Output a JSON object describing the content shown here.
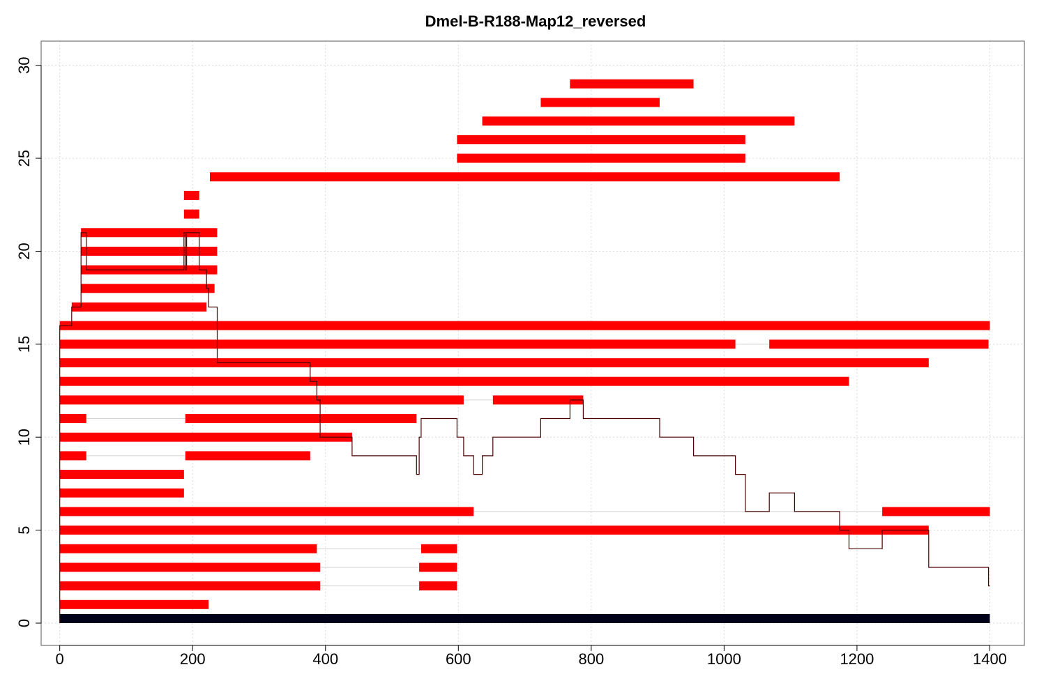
{
  "chart_data": {
    "type": "segment-coverage",
    "title": "Dmel-B-R188-Map12_reversed",
    "xlabel": "",
    "ylabel": "",
    "xlim": [
      -28,
      1452
    ],
    "ylim": [
      -1.2,
      31.3
    ],
    "x_ticks": [
      0,
      200,
      400,
      600,
      800,
      1000,
      1200,
      1400
    ],
    "y_ticks": [
      0,
      5,
      10,
      15,
      20,
      25,
      30
    ],
    "grid": true,
    "colors": {
      "segment": "#ff0000",
      "connector": "#d3d3d3",
      "reference": "#00001a",
      "coverage": "#4a0000",
      "grid": "#d9d9d9"
    },
    "reference_bar": {
      "start": 0,
      "end": 1400,
      "y": 0
    },
    "reads": [
      {
        "y": 1,
        "segments": [
          [
            0,
            224
          ]
        ]
      },
      {
        "y": 2,
        "segments": [
          [
            0,
            392
          ],
          [
            541,
            598
          ]
        ]
      },
      {
        "y": 3,
        "segments": [
          [
            0,
            392
          ],
          [
            541,
            598
          ]
        ]
      },
      {
        "y": 4,
        "segments": [
          [
            0,
            387
          ],
          [
            544,
            598
          ]
        ]
      },
      {
        "y": 5,
        "segments": [
          [
            0,
            1308
          ]
        ]
      },
      {
        "y": 6,
        "segments": [
          [
            0,
            623
          ],
          [
            1238,
            1400
          ]
        ]
      },
      {
        "y": 7,
        "segments": [
          [
            0,
            187
          ]
        ]
      },
      {
        "y": 8,
        "segments": [
          [
            0,
            187
          ]
        ]
      },
      {
        "y": 9,
        "segments": [
          [
            0,
            40
          ],
          [
            189,
            377
          ]
        ]
      },
      {
        "y": 10,
        "segments": [
          [
            0,
            440
          ]
        ]
      },
      {
        "y": 11,
        "segments": [
          [
            0,
            40
          ],
          [
            189,
            537
          ]
        ]
      },
      {
        "y": 12,
        "segments": [
          [
            0,
            608
          ],
          [
            652,
            788
          ]
        ]
      },
      {
        "y": 13,
        "segments": [
          [
            0,
            1188
          ]
        ]
      },
      {
        "y": 14,
        "segments": [
          [
            0,
            1308
          ]
        ]
      },
      {
        "y": 15,
        "segments": [
          [
            0,
            1017
          ],
          [
            1068,
            1398
          ]
        ]
      },
      {
        "y": 16,
        "segments": [
          [
            0,
            1400
          ]
        ]
      },
      {
        "y": 17,
        "segments": [
          [
            18,
            221
          ]
        ]
      },
      {
        "y": 18,
        "segments": [
          [
            32,
            233
          ]
        ]
      },
      {
        "y": 19,
        "segments": [
          [
            32,
            237
          ]
        ]
      },
      {
        "y": 20,
        "segments": [
          [
            32,
            237
          ]
        ]
      },
      {
        "y": 21,
        "segments": [
          [
            32,
            237
          ]
        ]
      },
      {
        "y": 22,
        "segments": [
          [
            187,
            210
          ]
        ]
      },
      {
        "y": 23,
        "segments": [
          [
            187,
            210
          ]
        ]
      },
      {
        "y": 24,
        "segments": [
          [
            226,
            1174
          ]
        ]
      },
      {
        "y": 25,
        "segments": [
          [
            598,
            1032
          ]
        ]
      },
      {
        "y": 26,
        "segments": [
          [
            598,
            1032
          ]
        ]
      },
      {
        "y": 27,
        "segments": [
          [
            636,
            1106
          ]
        ]
      },
      {
        "y": 28,
        "segments": [
          [
            724,
            903
          ]
        ]
      },
      {
        "y": 29,
        "segments": [
          [
            768,
            954
          ]
        ]
      }
    ],
    "coverage": [
      [
        0,
        0
      ],
      [
        0,
        16
      ],
      [
        18,
        16
      ],
      [
        18,
        17
      ],
      [
        32,
        17
      ],
      [
        32,
        21
      ],
      [
        40,
        21
      ],
      [
        40,
        19
      ],
      [
        187,
        19
      ],
      [
        187,
        21
      ],
      [
        189,
        21
      ],
      [
        189,
        19
      ],
      [
        191,
        19
      ],
      [
        191,
        21
      ],
      [
        210,
        21
      ],
      [
        210,
        19
      ],
      [
        221,
        19
      ],
      [
        221,
        18
      ],
      [
        224,
        18
      ],
      [
        224,
        17
      ],
      [
        233,
        17
      ],
      [
        237,
        17
      ],
      [
        237,
        14
      ],
      [
        377,
        14
      ],
      [
        377,
        13
      ],
      [
        387,
        13
      ],
      [
        387,
        12
      ],
      [
        392,
        12
      ],
      [
        392,
        10
      ],
      [
        440,
        10
      ],
      [
        440,
        9
      ],
      [
        537,
        9
      ],
      [
        537,
        8
      ],
      [
        541,
        8
      ],
      [
        541,
        10
      ],
      [
        544,
        10
      ],
      [
        544,
        11
      ],
      [
        598,
        11
      ],
      [
        598,
        10
      ],
      [
        608,
        10
      ],
      [
        608,
        9
      ],
      [
        623,
        9
      ],
      [
        623,
        8
      ],
      [
        636,
        8
      ],
      [
        636,
        9
      ],
      [
        652,
        9
      ],
      [
        652,
        10
      ],
      [
        724,
        10
      ],
      [
        724,
        11
      ],
      [
        768,
        11
      ],
      [
        768,
        12
      ],
      [
        788,
        12
      ],
      [
        788,
        11
      ],
      [
        903,
        11
      ],
      [
        903,
        10
      ],
      [
        954,
        10
      ],
      [
        954,
        9
      ],
      [
        1017,
        9
      ],
      [
        1017,
        8
      ],
      [
        1032,
        8
      ],
      [
        1032,
        6
      ],
      [
        1068,
        6
      ],
      [
        1068,
        7
      ],
      [
        1106,
        7
      ],
      [
        1106,
        6
      ],
      [
        1174,
        6
      ],
      [
        1174,
        5
      ],
      [
        1188,
        5
      ],
      [
        1188,
        4
      ],
      [
        1238,
        4
      ],
      [
        1238,
        5
      ],
      [
        1308,
        5
      ],
      [
        1308,
        3
      ],
      [
        1398,
        3
      ],
      [
        1398,
        2
      ],
      [
        1400,
        2
      ]
    ]
  }
}
